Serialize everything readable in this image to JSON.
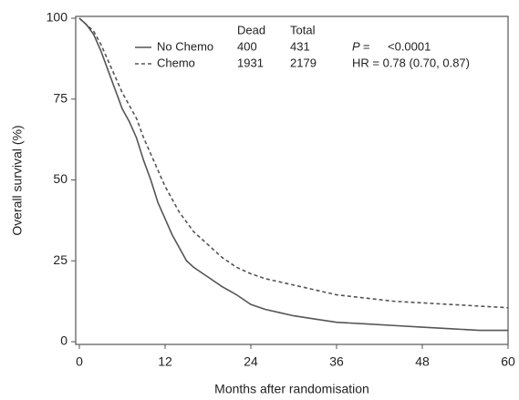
{
  "chart_data": {
    "type": "line",
    "x_label": "Months after randomisation",
    "y_label": "Overall survival (%)",
    "x": [
      0,
      1,
      2,
      3,
      4,
      5,
      6,
      7,
      8,
      9,
      10,
      11,
      12,
      13,
      14,
      15,
      16,
      18,
      20,
      22,
      24,
      26,
      28,
      30,
      33,
      36,
      40,
      44,
      48,
      52,
      56,
      60
    ],
    "series": [
      {
        "name": "No Chemo",
        "color": "#555555",
        "dash": false,
        "dead": 400,
        "total": 431,
        "values": [
          100,
          98,
          95,
          90,
          84,
          78,
          72,
          68,
          63,
          56,
          50,
          43,
          38,
          33,
          29,
          25,
          23,
          20,
          17,
          14.5,
          11.5,
          10,
          9,
          8,
          7,
          6,
          5.5,
          5,
          4.5,
          4,
          3.5,
          3.5
        ]
      },
      {
        "name": "Chemo",
        "color": "#555555",
        "dash": true,
        "dead": 1931,
        "total": 2179,
        "values": [
          100,
          98,
          96,
          92,
          87,
          82,
          77,
          73,
          69,
          63,
          58,
          53,
          48,
          44,
          40,
          37,
          34,
          30,
          26,
          23,
          21,
          19.5,
          18.5,
          17.5,
          16,
          14.5,
          13.5,
          12.5,
          12,
          11.5,
          11,
          10.5
        ]
      }
    ],
    "legend_headers": [
      "Dead",
      "Total"
    ],
    "annotations": [
      "P =",
      "<0.0001",
      "HR = 0.78 (0.70, 0.87)"
    ],
    "xlim": [
      0,
      60
    ],
    "xticks": [
      0,
      12,
      24,
      36,
      48,
      60
    ],
    "ylim": [
      0,
      100
    ],
    "yticks": [
      0,
      25,
      50,
      75,
      100
    ],
    "grid": false
  }
}
